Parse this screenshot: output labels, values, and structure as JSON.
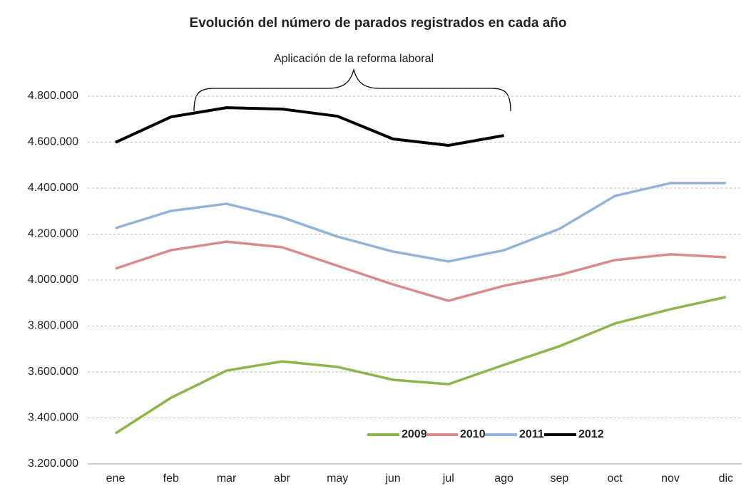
{
  "chart_data": {
    "type": "line",
    "title": "Evolución del número de parados registrados  en cada año",
    "annotation": "Aplicación de la reforma laboral",
    "categories": [
      "ene",
      "feb",
      "mar",
      "abr",
      "may",
      "jun",
      "jul",
      "ago",
      "sep",
      "oct",
      "nov",
      "dic"
    ],
    "series": [
      {
        "name": "2009",
        "color": "#8db54a",
        "values": [
          3333000,
          3488000,
          3606000,
          3646000,
          3622000,
          3566000,
          3547000,
          3631000,
          3712000,
          3811000,
          3873000,
          3926000
        ]
      },
      {
        "name": "2010",
        "color": "#db8a8a",
        "values": [
          4050000,
          4130000,
          4167000,
          4143000,
          4062000,
          3981000,
          3910000,
          3975000,
          4022000,
          4087000,
          4112000,
          4099000
        ]
      },
      {
        "name": "2011",
        "color": "#94b3d9",
        "values": [
          4226000,
          4301000,
          4332000,
          4273000,
          4189000,
          4124000,
          4081000,
          4130000,
          4223000,
          4366000,
          4422000,
          4422000
        ]
      },
      {
        "name": "2012",
        "color": "#000000",
        "values": [
          4599000,
          4710000,
          4750000,
          4744000,
          4713000,
          4614000,
          4586000,
          4629000,
          null,
          null,
          null,
          null
        ]
      }
    ],
    "ylim": [
      3200000,
      4800000
    ],
    "yticks": [
      {
        "value": 3200000,
        "label": "3.200.000"
      },
      {
        "value": 3400000,
        "label": "3.400.000"
      },
      {
        "value": 3600000,
        "label": "3.600.000"
      },
      {
        "value": 3800000,
        "label": "3.800.000"
      },
      {
        "value": 4000000,
        "label": "4.000.000"
      },
      {
        "value": 4200000,
        "label": "4.200.000"
      },
      {
        "value": 4400000,
        "label": "4.400.000"
      },
      {
        "value": 4600000,
        "label": "4.600.000"
      },
      {
        "value": 4800000,
        "label": "4.800.000"
      }
    ],
    "grid": true,
    "legend": "bottom-right"
  }
}
